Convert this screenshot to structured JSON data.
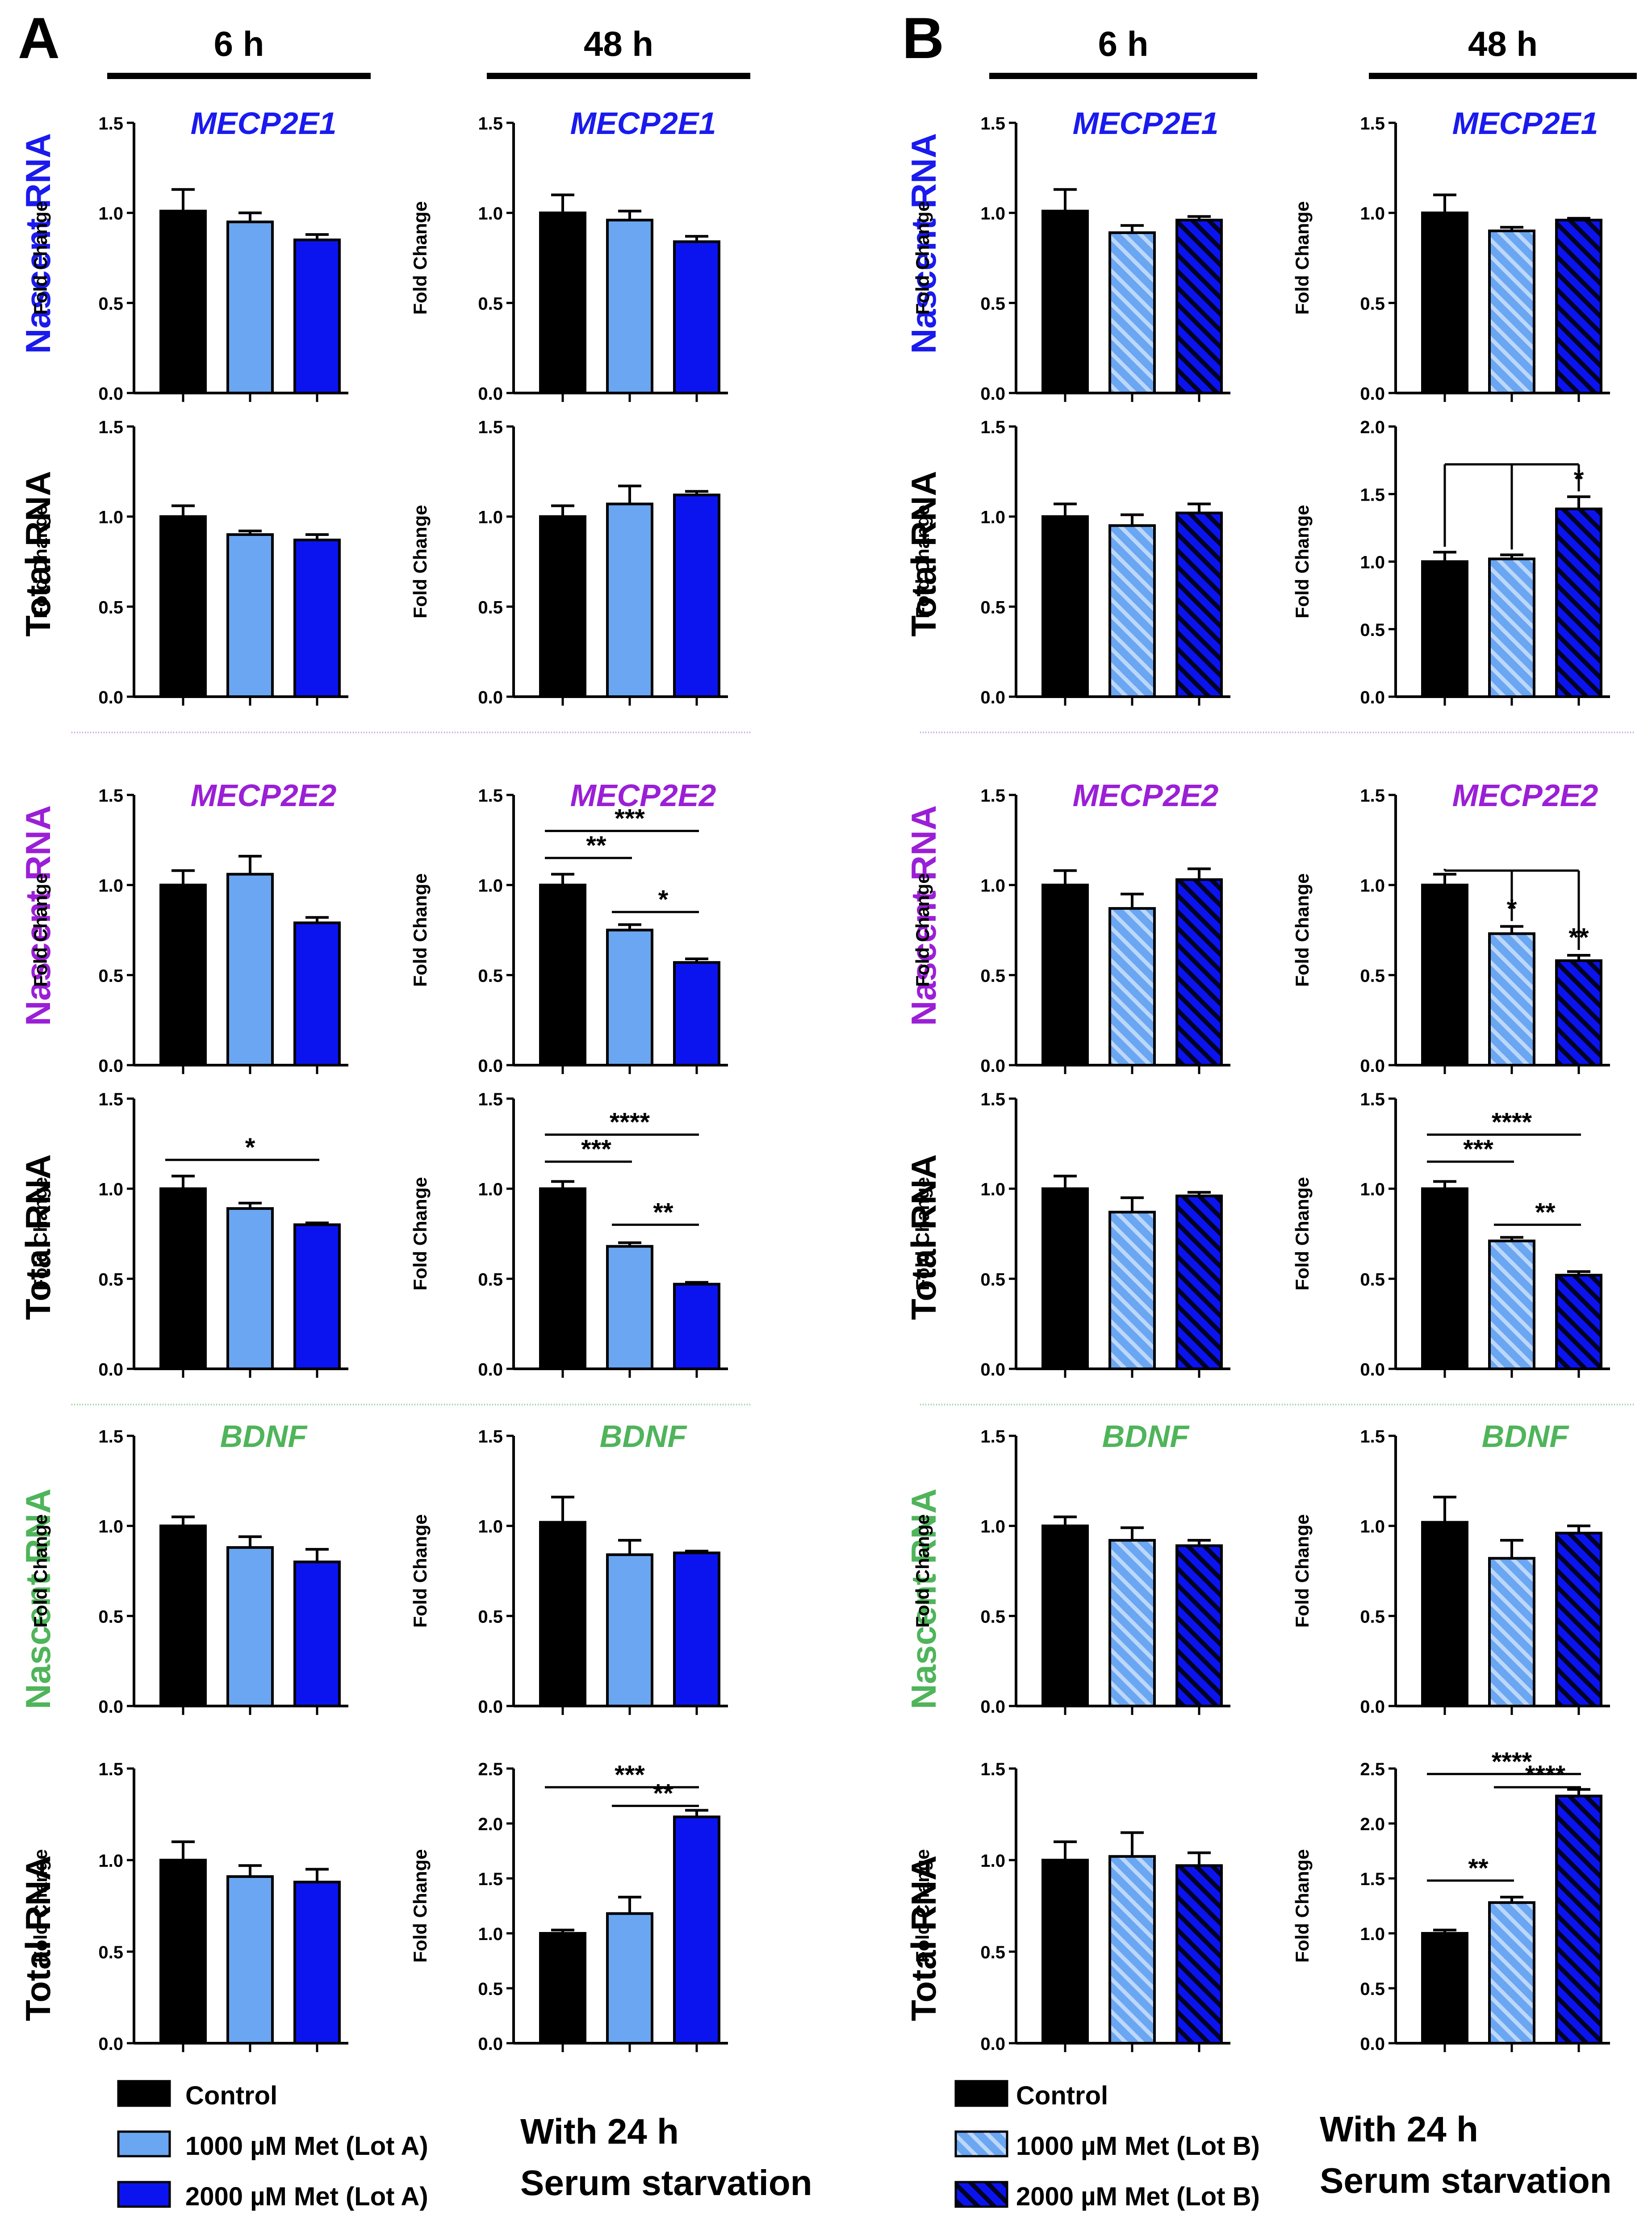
{
  "panels": {
    "A": {
      "label": "A",
      "col_headers": [
        "6 h",
        "48 h"
      ],
      "lot": "A"
    },
    "B": {
      "label": "B",
      "col_headers": [
        "6 h",
        "48 h"
      ],
      "lot": "B"
    }
  },
  "row_labels": [
    "Nascent RNA",
    "Total RNA",
    "Nascent RNA",
    "Total RNA",
    "Nascent RNA",
    "Total RNA"
  ],
  "gene_titles": [
    "MECP2E1",
    "MECP2E2",
    "BDNF"
  ],
  "axis_label": "Fold Change",
  "legend": {
    "A": [
      "Control",
      "1000 µM Met (Lot A)",
      "2000 µM Met (Lot A)"
    ],
    "B": [
      "Control",
      "1000 µM Met (Lot B)",
      "2000 µM Met (Lot B)"
    ]
  },
  "serum_note": [
    "With 24 h",
    "Serum starvation"
  ],
  "colors": {
    "control": "#000000",
    "met1000": "#6aa6f2",
    "met2000": "#0b14ee",
    "e1": "#1a1aee",
    "e2": "#9b1fd6",
    "bdnf": "#4fb45a"
  },
  "chart_data": [
    {
      "type": "bar",
      "panel": "A",
      "time": "6 h",
      "gene": "MECP2E1",
      "rna": "Nascent RNA",
      "title": "MECP2E1",
      "ylabel": "Fold Change",
      "ylim": [
        0,
        1.5
      ],
      "yticks": [
        "0.0",
        "0.5",
        "1.0",
        "1.5"
      ],
      "categories": [
        "Control",
        "1000 µM Met (Lot A)",
        "2000 µM Met (Lot A)"
      ],
      "values": [
        1.01,
        0.95,
        0.85
      ],
      "errors": [
        0.12,
        0.05,
        0.03
      ],
      "significance": []
    },
    {
      "type": "bar",
      "panel": "A",
      "time": "48 h",
      "gene": "MECP2E1",
      "rna": "Nascent RNA",
      "title": "MECP2E1",
      "ylabel": "Fold Change",
      "ylim": [
        0,
        1.5
      ],
      "yticks": [
        "0.0",
        "0.5",
        "1.0",
        "1.5"
      ],
      "categories": [
        "Control",
        "1000 µM Met (Lot A)",
        "2000 µM Met (Lot A)"
      ],
      "values": [
        1.0,
        0.96,
        0.84
      ],
      "errors": [
        0.1,
        0.05,
        0.03
      ],
      "significance": []
    },
    {
      "type": "bar",
      "panel": "B",
      "time": "6 h",
      "gene": "MECP2E1",
      "rna": "Nascent RNA",
      "title": "MECP2E1",
      "ylabel": "Fold Change",
      "ylim": [
        0,
        1.5
      ],
      "yticks": [
        "0.0",
        "0.5",
        "1.0",
        "1.5"
      ],
      "categories": [
        "Control",
        "1000 µM Met (Lot B)",
        "2000 µM Met (Lot B)"
      ],
      "values": [
        1.01,
        0.89,
        0.96
      ],
      "errors": [
        0.12,
        0.04,
        0.02
      ],
      "significance": []
    },
    {
      "type": "bar",
      "panel": "B",
      "time": "48 h",
      "gene": "MECP2E1",
      "rna": "Nascent RNA",
      "title": "MECP2E1",
      "ylabel": "Fold Change",
      "ylim": [
        0,
        1.5
      ],
      "yticks": [
        "0.0",
        "0.5",
        "1.0",
        "1.5"
      ],
      "categories": [
        "Control",
        "1000 µM Met (Lot B)",
        "2000 µM Met (Lot B)"
      ],
      "values": [
        1.0,
        0.9,
        0.96
      ],
      "errors": [
        0.1,
        0.02,
        0.01
      ],
      "significance": []
    },
    {
      "type": "bar",
      "panel": "A",
      "time": "6 h",
      "gene": "MECP2E1",
      "rna": "Total RNA",
      "title": "",
      "ylabel": "Fold Change",
      "ylim": [
        0,
        1.5
      ],
      "yticks": [
        "0.0",
        "0.5",
        "1.0",
        "1.5"
      ],
      "categories": [
        "Control",
        "1000 µM Met (Lot A)",
        "2000 µM Met (Lot A)"
      ],
      "values": [
        1.0,
        0.9,
        0.87
      ],
      "errors": [
        0.06,
        0.02,
        0.03
      ],
      "significance": []
    },
    {
      "type": "bar",
      "panel": "A",
      "time": "48 h",
      "gene": "MECP2E1",
      "rna": "Total RNA",
      "title": "",
      "ylabel": "Fold Change",
      "ylim": [
        0,
        1.5
      ],
      "yticks": [
        "0.0",
        "0.5",
        "1.0",
        "1.5"
      ],
      "categories": [
        "Control",
        "1000 µM Met (Lot A)",
        "2000 µM Met (Lot A)"
      ],
      "values": [
        1.0,
        1.07,
        1.12
      ],
      "errors": [
        0.06,
        0.1,
        0.02
      ],
      "significance": []
    },
    {
      "type": "bar",
      "panel": "B",
      "time": "6 h",
      "gene": "MECP2E1",
      "rna": "Total RNA",
      "title": "",
      "ylabel": "Fold Change",
      "ylim": [
        0,
        1.5
      ],
      "yticks": [
        "0.0",
        "0.5",
        "1.0",
        "1.5"
      ],
      "categories": [
        "Control",
        "1000 µM Met (Lot B)",
        "2000 µM Met (Lot B)"
      ],
      "values": [
        1.0,
        0.95,
        1.02
      ],
      "errors": [
        0.07,
        0.06,
        0.05
      ],
      "significance": []
    },
    {
      "type": "bar",
      "panel": "B",
      "time": "48 h",
      "gene": "MECP2E1",
      "rna": "Total RNA",
      "title": "",
      "ylabel": "Fold Change",
      "ylim": [
        0,
        2.0
      ],
      "yticks": [
        "0.0",
        "0.5",
        "1.0",
        "1.5",
        "2.0"
      ],
      "categories": [
        "Control",
        "1000 µM Met (Lot B)",
        "2000 µM Met (Lot B)"
      ],
      "values": [
        1.0,
        1.02,
        1.39
      ],
      "errors": [
        0.07,
        0.03,
        0.09
      ],
      "significance": [
        {
          "type": "multi",
          "from": 0,
          "to": 2,
          "sub": 1,
          "y": 1.72,
          "label": "*",
          "labelAt": 2
        }
      ]
    },
    {
      "type": "bar",
      "panel": "A",
      "time": "6 h",
      "gene": "MECP2E2",
      "rna": "Nascent RNA",
      "title": "MECP2E2",
      "ylabel": "Fold Change",
      "ylim": [
        0,
        1.5
      ],
      "yticks": [
        "0.0",
        "0.5",
        "1.0",
        "1.5"
      ],
      "categories": [
        "Control",
        "1000 µM Met (Lot A)",
        "2000 µM Met (Lot A)"
      ],
      "values": [
        1.0,
        1.06,
        0.79
      ],
      "errors": [
        0.08,
        0.1,
        0.03
      ],
      "significance": []
    },
    {
      "type": "bar",
      "panel": "A",
      "time": "48 h",
      "gene": "MECP2E2",
      "rna": "Nascent RNA",
      "title": "MECP2E2",
      "ylabel": "Fold Change",
      "ylim": [
        0,
        1.5
      ],
      "yticks": [
        "0.0",
        "0.5",
        "1.0",
        "1.5"
      ],
      "categories": [
        "Control",
        "1000 µM Met (Lot A)",
        "2000 µM Met (Lot A)"
      ],
      "values": [
        1.0,
        0.75,
        0.57
      ],
      "errors": [
        0.06,
        0.03,
        0.02
      ],
      "significance": [
        {
          "type": "line",
          "from": 0,
          "to": 2,
          "y": 1.3,
          "label": "***"
        },
        {
          "type": "line",
          "from": 0,
          "to": 1,
          "y": 1.15,
          "label": "**"
        },
        {
          "type": "line",
          "from": 1,
          "to": 2,
          "y": 0.85,
          "label": "*"
        }
      ]
    },
    {
      "type": "bar",
      "panel": "B",
      "time": "6 h",
      "gene": "MECP2E2",
      "rna": "Nascent RNA",
      "title": "MECP2E2",
      "ylabel": "Fold Change",
      "ylim": [
        0,
        1.5
      ],
      "yticks": [
        "0.0",
        "0.5",
        "1.0",
        "1.5"
      ],
      "categories": [
        "Control",
        "1000 µM Met (Lot B)",
        "2000 µM Met (Lot B)"
      ],
      "values": [
        1.0,
        0.87,
        1.03
      ],
      "errors": [
        0.08,
        0.08,
        0.06
      ],
      "significance": []
    },
    {
      "type": "bar",
      "panel": "B",
      "time": "48 h",
      "gene": "MECP2E2",
      "rna": "Nascent RNA",
      "title": "MECP2E2",
      "ylabel": "Fold Change",
      "ylim": [
        0,
        1.5
      ],
      "yticks": [
        "0.0",
        "0.5",
        "1.0",
        "1.5"
      ],
      "categories": [
        "Control",
        "1000 µM Met (Lot B)",
        "2000 µM Met (Lot B)"
      ],
      "values": [
        1.0,
        0.73,
        0.58
      ],
      "errors": [
        0.06,
        0.04,
        0.03
      ],
      "significance": [
        {
          "type": "multi",
          "from": 0,
          "to": 2,
          "sub": 1,
          "y": 1.08,
          "label": "",
          "bracketLabels": [
            {
              "at": 1,
              "label": "*"
            },
            {
              "at": 2,
              "label": "**"
            }
          ]
        }
      ]
    },
    {
      "type": "bar",
      "panel": "A",
      "time": "6 h",
      "gene": "MECP2E2",
      "rna": "Total RNA",
      "title": "",
      "ylabel": "Fold Change",
      "ylim": [
        0,
        1.5
      ],
      "yticks": [
        "0.0",
        "0.5",
        "1.0",
        "1.5"
      ],
      "categories": [
        "Control",
        "1000 µM Met (Lot A)",
        "2000 µM Met (Lot A)"
      ],
      "values": [
        1.0,
        0.89,
        0.8
      ],
      "errors": [
        0.07,
        0.03,
        0.01
      ],
      "significance": [
        {
          "type": "line",
          "from": 0,
          "to": 2,
          "y": 1.16,
          "label": "*"
        }
      ]
    },
    {
      "type": "bar",
      "panel": "A",
      "time": "48 h",
      "gene": "MECP2E2",
      "rna": "Total RNA",
      "title": "",
      "ylabel": "Fold Change",
      "ylim": [
        0,
        1.5
      ],
      "yticks": [
        "0.0",
        "0.5",
        "1.0",
        "1.5"
      ],
      "categories": [
        "Control",
        "1000 µM Met (Lot A)",
        "2000 µM Met (Lot A)"
      ],
      "values": [
        1.0,
        0.68,
        0.47
      ],
      "errors": [
        0.04,
        0.02,
        0.01
      ],
      "significance": [
        {
          "type": "line",
          "from": 0,
          "to": 2,
          "y": 1.3,
          "label": "****"
        },
        {
          "type": "line",
          "from": 0,
          "to": 1,
          "y": 1.15,
          "label": "***"
        },
        {
          "type": "line",
          "from": 1,
          "to": 2,
          "y": 0.8,
          "label": "**"
        }
      ]
    },
    {
      "type": "bar",
      "panel": "B",
      "time": "6 h",
      "gene": "MECP2E2",
      "rna": "Total RNA",
      "title": "",
      "ylabel": "Fold Change",
      "ylim": [
        0,
        1.5
      ],
      "yticks": [
        "0.0",
        "0.5",
        "1.0",
        "1.5"
      ],
      "categories": [
        "Control",
        "1000 µM Met (Lot B)",
        "2000 µM Met (Lot B)"
      ],
      "values": [
        1.0,
        0.87,
        0.96
      ],
      "errors": [
        0.07,
        0.08,
        0.02
      ],
      "significance": []
    },
    {
      "type": "bar",
      "panel": "B",
      "time": "48 h",
      "gene": "MECP2E2",
      "rna": "Total RNA",
      "title": "",
      "ylabel": "Fold Change",
      "ylim": [
        0,
        1.5
      ],
      "yticks": [
        "0.0",
        "0.5",
        "1.0",
        "1.5"
      ],
      "categories": [
        "Control",
        "1000 µM Met (Lot B)",
        "2000 µM Met (Lot B)"
      ],
      "values": [
        1.0,
        0.71,
        0.52
      ],
      "errors": [
        0.04,
        0.02,
        0.02
      ],
      "significance": [
        {
          "type": "line",
          "from": 0,
          "to": 2,
          "y": 1.3,
          "label": "****"
        },
        {
          "type": "line",
          "from": 0,
          "to": 1,
          "y": 1.15,
          "label": "***"
        },
        {
          "type": "line",
          "from": 1,
          "to": 2,
          "y": 0.8,
          "label": "**"
        }
      ]
    },
    {
      "type": "bar",
      "panel": "A",
      "time": "6 h",
      "gene": "BDNF",
      "rna": "Nascent RNA",
      "title": "BDNF",
      "ylabel": "Fold Change",
      "ylim": [
        0,
        1.5
      ],
      "yticks": [
        "0.0",
        "0.5",
        "1.0",
        "1.5"
      ],
      "categories": [
        "Control",
        "1000 µM Met (Lot A)",
        "2000 µM Met (Lot A)"
      ],
      "values": [
        1.0,
        0.88,
        0.8
      ],
      "errors": [
        0.05,
        0.06,
        0.07
      ],
      "significance": []
    },
    {
      "type": "bar",
      "panel": "A",
      "time": "48 h",
      "gene": "BDNF",
      "rna": "Nascent RNA",
      "title": "BDNF",
      "ylabel": "Fold Change",
      "ylim": [
        0,
        1.5
      ],
      "yticks": [
        "0.0",
        "0.5",
        "1.0",
        "1.5"
      ],
      "categories": [
        "Control",
        "1000 µM Met (Lot A)",
        "2000 µM Met (Lot A)"
      ],
      "values": [
        1.02,
        0.84,
        0.85
      ],
      "errors": [
        0.14,
        0.08,
        0.01
      ],
      "significance": []
    },
    {
      "type": "bar",
      "panel": "B",
      "time": "6 h",
      "gene": "BDNF",
      "rna": "Nascent RNA",
      "title": "BDNF",
      "ylabel": "Fold Change",
      "ylim": [
        0,
        1.5
      ],
      "yticks": [
        "0.0",
        "0.5",
        "1.0",
        "1.5"
      ],
      "categories": [
        "Control",
        "1000 µM Met (Lot B)",
        "2000 µM Met (Lot B)"
      ],
      "values": [
        1.0,
        0.92,
        0.89
      ],
      "errors": [
        0.05,
        0.07,
        0.03
      ],
      "significance": []
    },
    {
      "type": "bar",
      "panel": "B",
      "time": "48 h",
      "gene": "BDNF",
      "rna": "Nascent RNA",
      "title": "BDNF",
      "ylabel": "Fold Change",
      "ylim": [
        0,
        1.5
      ],
      "yticks": [
        "0.0",
        "0.5",
        "1.0",
        "1.5"
      ],
      "categories": [
        "Control",
        "1000 µM Met (Lot B)",
        "2000 µM Met (Lot B)"
      ],
      "values": [
        1.02,
        0.82,
        0.96
      ],
      "errors": [
        0.14,
        0.1,
        0.04
      ],
      "significance": []
    },
    {
      "type": "bar",
      "panel": "A",
      "time": "6 h",
      "gene": "BDNF",
      "rna": "Total RNA",
      "title": "",
      "ylabel": "Fold Change",
      "ylim": [
        0,
        1.5
      ],
      "yticks": [
        "0.0",
        "0.5",
        "1.0",
        "1.5"
      ],
      "categories": [
        "Control",
        "1000 µM Met (Lot A)",
        "2000 µM Met (Lot A)"
      ],
      "values": [
        1.0,
        0.91,
        0.88
      ],
      "errors": [
        0.1,
        0.06,
        0.07
      ],
      "significance": []
    },
    {
      "type": "bar",
      "panel": "A",
      "time": "48 h",
      "gene": "BDNF",
      "rna": "Total RNA",
      "title": "",
      "ylabel": "Fold Change",
      "ylim": [
        0,
        2.5
      ],
      "yticks": [
        "0.0",
        "0.5",
        "1.0",
        "1.5",
        "2.0",
        "2.5"
      ],
      "categories": [
        "Control",
        "1000 µM Met (Lot A)",
        "2000 µM Met (Lot A)"
      ],
      "values": [
        1.0,
        1.18,
        2.06
      ],
      "errors": [
        0.03,
        0.15,
        0.06
      ],
      "significance": [
        {
          "type": "line",
          "from": 0,
          "to": 2,
          "y": 2.33,
          "label": "***"
        },
        {
          "type": "line",
          "from": 1,
          "to": 2,
          "y": 2.16,
          "label": "**"
        }
      ]
    },
    {
      "type": "bar",
      "panel": "B",
      "time": "6 h",
      "gene": "BDNF",
      "rna": "Total RNA",
      "title": "",
      "ylabel": "Fold Change",
      "ylim": [
        0,
        1.5
      ],
      "yticks": [
        "0.0",
        "0.5",
        "1.0",
        "1.5"
      ],
      "categories": [
        "Control",
        "1000 µM Met (Lot B)",
        "2000 µM Met (Lot B)"
      ],
      "values": [
        1.0,
        1.02,
        0.97
      ],
      "errors": [
        0.1,
        0.13,
        0.07
      ],
      "significance": []
    },
    {
      "type": "bar",
      "panel": "B",
      "time": "48 h",
      "gene": "BDNF",
      "rna": "Total RNA",
      "title": "",
      "ylabel": "Fold Change",
      "ylim": [
        0,
        2.5
      ],
      "yticks": [
        "0.0",
        "0.5",
        "1.0",
        "1.5",
        "2.0",
        "2.5"
      ],
      "categories": [
        "Control",
        "1000 µM Met (Lot B)",
        "2000 µM Met (Lot B)"
      ],
      "values": [
        1.0,
        1.28,
        2.25
      ],
      "errors": [
        0.03,
        0.05,
        0.06
      ],
      "significance": [
        {
          "type": "line",
          "from": 0,
          "to": 2,
          "y": 2.45,
          "label": "****"
        },
        {
          "type": "line",
          "from": 1,
          "to": 2,
          "y": 2.33,
          "label": "****"
        },
        {
          "type": "line",
          "from": 0,
          "to": 1,
          "y": 1.48,
          "label": "**"
        }
      ]
    }
  ]
}
